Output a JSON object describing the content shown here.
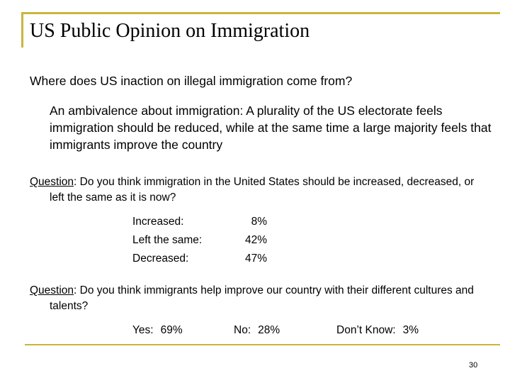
{
  "title": "US Public Opinion on Immigration",
  "subtitle": "Where does US inaction on illegal immigration come from?",
  "bullet": "An ambivalence about immigration:  A plurality of the US electorate feels immigration should be reduced, while at the same time a large majority feels that immigrants improve the country",
  "question1": {
    "label": "Question",
    "text": ": Do you think immigration in the United States should be increased, decreased, or left the same as it is now?",
    "results": [
      {
        "label": "Increased:",
        "value": "8%"
      },
      {
        "label": "Left the same:",
        "value": "42%"
      },
      {
        "label": "Decreased:",
        "value": "47%"
      }
    ]
  },
  "question2": {
    "label": "Question",
    "text": ":  Do you think immigrants help improve our country with their different cultures and talents?",
    "answers": [
      {
        "label": "Yes:",
        "value": "69%"
      },
      {
        "label": "No:",
        "value": "28%"
      },
      {
        "label": "Don’t Know:",
        "value": "3%"
      }
    ]
  },
  "page_number": "30",
  "colors": {
    "accent_border": "#c9b53c"
  }
}
